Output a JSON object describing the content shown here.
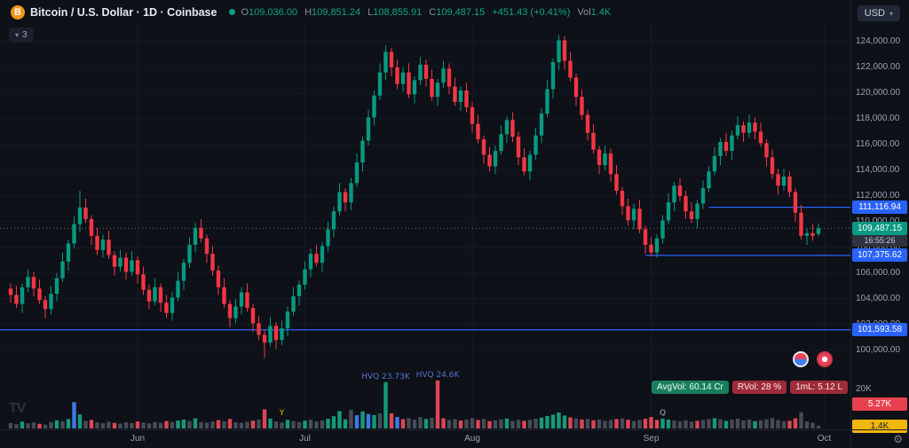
{
  "icons": {
    "bitcoin": "B",
    "caret_down": "▾",
    "gear": "⚙",
    "tv_logo": "TV"
  },
  "header": {
    "title": "Bitcoin / U.S. Dollar · 1D · Coinbase",
    "ohlc": {
      "open_label": "O",
      "open": "109,036.00",
      "high_label": "H",
      "high": "109,851.24",
      "low_label": "L",
      "low": "108,855.91",
      "close_label": "C",
      "close": "109,487.15",
      "change": "+451.43 (+0.41%)",
      "volume_label": "Vol",
      "volume": "1.4K"
    },
    "currency_button": "USD",
    "legend_collapsed_count": "3"
  },
  "price_axis_ticks": [
    "124,000.00",
    "122,000.00",
    "120,000.00",
    "118,000.00",
    "116,000.00",
    "114,000.00",
    "112,000.00",
    "110,000.00",
    "108,000.00",
    "106,000.00",
    "104,000.00",
    "102,000.00",
    "100,000.00"
  ],
  "time_axis": [
    {
      "label": "Jun",
      "i": 22
    },
    {
      "label": "Jul",
      "i": 51
    },
    {
      "label": "Aug",
      "i": 80
    },
    {
      "label": "Sep",
      "i": 111
    },
    {
      "label": "Oct",
      "i": 141
    }
  ],
  "levels": [
    {
      "label": "111,116.94",
      "value": 111116.94,
      "from_i": 121
    },
    {
      "label": "107,375.62",
      "value": 107375.62,
      "from_i": 110
    },
    {
      "label": "101,593.58",
      "value": 101593.58,
      "from_i": -1
    }
  ],
  "last_price": {
    "label": "109,487.15",
    "value": 109487.15,
    "countdown": "16:55:26"
  },
  "volume_pane": {
    "axis_top_label": "20K",
    "axis_top_value": 20,
    "ma_badge": "5.27K",
    "current_badge": "1.4K",
    "stats": [
      {
        "label": "AvgVol: 60.14 Cr",
        "type": "green"
      },
      {
        "label": "RVol: 28 %",
        "type": "red"
      },
      {
        "label": "1mL: 5.12 L",
        "type": "red"
      }
    ],
    "hvq_labels": [
      {
        "text": "HVQ 23.73K",
        "i": 65
      },
      {
        "text": "HVQ 24.6K",
        "i": 74
      }
    ],
    "markers": [
      {
        "text": "Y",
        "i": 47,
        "color": "#f2b70d"
      },
      {
        "text": "Q",
        "i": 113,
        "color": "#aab0bb"
      }
    ]
  },
  "colors": {
    "up": "#089981",
    "down": "#f23645",
    "ray_blue": "#2962ff",
    "badge_yellow": "#f2b70d",
    "grid": "#151a26",
    "dotted_line": "#8a8f9a",
    "vol_gray": "#4a4f5c",
    "vol_red": "#e84a5c",
    "vol_green": "#17a27f",
    "vol_blue": "#3f7ff2",
    "hvq_text": "#5472d3"
  },
  "chart_data": {
    "type": "candlestick",
    "symbol": "Bitcoin / U.S. Dollar",
    "interval": "1D",
    "exchange": "Coinbase",
    "unit": "USD (thousands)",
    "y_range_usd": [
      98300,
      125300
    ],
    "x_months": [
      "Jun",
      "Jul",
      "Aug",
      "Sep",
      "Oct"
    ],
    "candles_ohlc_k": [
      [
        104.8,
        105.2,
        103.7,
        104.3
      ],
      [
        104.3,
        105.0,
        103.3,
        103.6
      ],
      [
        103.6,
        105.2,
        102.9,
        104.9
      ],
      [
        104.9,
        106.3,
        104.5,
        105.7
      ],
      [
        105.7,
        106.1,
        104.2,
        104.8
      ],
      [
        104.8,
        105.5,
        103.6,
        103.9
      ],
      [
        103.9,
        104.2,
        102.5,
        103.2
      ],
      [
        103.2,
        105.0,
        102.8,
        104.4
      ],
      [
        104.4,
        106.0,
        103.8,
        105.6
      ],
      [
        105.6,
        107.6,
        105.3,
        106.9
      ],
      [
        106.9,
        108.6,
        106.2,
        108.3
      ],
      [
        108.3,
        110.4,
        107.9,
        109.8
      ],
      [
        109.8,
        112.4,
        109.2,
        111.1
      ],
      [
        111.1,
        111.8,
        109.9,
        110.2
      ],
      [
        110.2,
        110.5,
        108.2,
        108.9
      ],
      [
        108.9,
        109.5,
        107.4,
        107.8
      ],
      [
        107.8,
        109.0,
        107.2,
        108.6
      ],
      [
        108.6,
        109.3,
        107.1,
        107.4
      ],
      [
        107.4,
        107.7,
        105.8,
        106.5
      ],
      [
        106.5,
        107.8,
        106.1,
        107.2
      ],
      [
        107.2,
        107.6,
        105.5,
        106.1
      ],
      [
        106.1,
        107.7,
        105.8,
        107.0
      ],
      [
        107.0,
        107.3,
        105.2,
        105.9
      ],
      [
        105.9,
        106.5,
        104.3,
        104.7
      ],
      [
        104.7,
        105.1,
        103.2,
        103.8
      ],
      [
        103.8,
        105.6,
        103.5,
        104.9
      ],
      [
        104.9,
        105.2,
        103.0,
        103.7
      ],
      [
        103.7,
        104.3,
        102.5,
        102.9
      ],
      [
        102.9,
        104.5,
        102.3,
        104.1
      ],
      [
        104.1,
        106.1,
        103.8,
        105.4
      ],
      [
        105.4,
        107.1,
        104.7,
        106.8
      ],
      [
        106.8,
        108.8,
        106.4,
        108.2
      ],
      [
        108.2,
        109.9,
        107.6,
        109.5
      ],
      [
        109.5,
        110.2,
        108.4,
        108.7
      ],
      [
        108.7,
        109.0,
        106.8,
        107.5
      ],
      [
        107.5,
        108.1,
        105.8,
        106.2
      ],
      [
        106.2,
        106.6,
        104.3,
        104.9
      ],
      [
        104.9,
        105.6,
        103.3,
        103.6
      ],
      [
        103.6,
        103.9,
        101.8,
        102.5
      ],
      [
        102.5,
        104.0,
        102.1,
        103.4
      ],
      [
        103.4,
        104.9,
        102.8,
        104.5
      ],
      [
        104.5,
        105.2,
        103.0,
        103.3
      ],
      [
        103.3,
        103.6,
        101.4,
        102.1
      ],
      [
        102.1,
        102.7,
        100.8,
        101.2
      ],
      [
        101.2,
        101.6,
        99.4,
        100.6
      ],
      [
        100.6,
        102.6,
        100.3,
        101.9
      ],
      [
        101.9,
        102.2,
        100.1,
        100.8
      ],
      [
        100.8,
        102.3,
        100.4,
        101.7
      ],
      [
        101.7,
        103.4,
        101.1,
        103.0
      ],
      [
        103.0,
        104.9,
        102.7,
        104.2
      ],
      [
        104.2,
        105.4,
        103.5,
        105.1
      ],
      [
        105.1,
        106.9,
        104.7,
        106.3
      ],
      [
        106.3,
        107.9,
        105.7,
        107.5
      ],
      [
        107.5,
        108.2,
        106.5,
        106.8
      ],
      [
        106.8,
        108.4,
        106.1,
        108.1
      ],
      [
        108.1,
        110.0,
        107.7,
        109.4
      ],
      [
        109.4,
        111.2,
        108.8,
        110.8
      ],
      [
        110.8,
        113.0,
        110.5,
        112.3
      ],
      [
        112.3,
        112.6,
        110.8,
        111.5
      ],
      [
        111.5,
        113.4,
        110.9,
        113.0
      ],
      [
        113.0,
        115.3,
        112.7,
        114.6
      ],
      [
        114.6,
        116.6,
        113.9,
        116.3
      ],
      [
        116.3,
        118.7,
        115.9,
        118.1
      ],
      [
        118.1,
        120.2,
        117.5,
        119.8
      ],
      [
        119.8,
        122.3,
        119.5,
        121.6
      ],
      [
        121.6,
        123.7,
        121.0,
        123.2
      ],
      [
        123.2,
        123.5,
        121.3,
        122.0
      ],
      [
        122.0,
        122.6,
        120.3,
        120.7
      ],
      [
        120.7,
        122.0,
        120.1,
        121.6
      ],
      [
        121.6,
        122.3,
        119.6,
        119.9
      ],
      [
        119.9,
        121.3,
        119.2,
        121.0
      ],
      [
        121.0,
        122.8,
        120.6,
        122.2
      ],
      [
        122.2,
        122.6,
        120.5,
        121.1
      ],
      [
        121.1,
        121.8,
        119.4,
        119.7
      ],
      [
        119.7,
        121.1,
        119.0,
        120.8
      ],
      [
        120.8,
        122.5,
        120.4,
        121.9
      ],
      [
        121.9,
        122.3,
        119.9,
        120.5
      ],
      [
        120.5,
        121.2,
        119.0,
        119.3
      ],
      [
        119.3,
        120.5,
        118.6,
        120.2
      ],
      [
        120.2,
        120.8,
        118.5,
        118.9
      ],
      [
        118.9,
        119.3,
        116.9,
        117.6
      ],
      [
        117.6,
        118.3,
        116.1,
        116.4
      ],
      [
        116.4,
        116.7,
        114.5,
        115.2
      ],
      [
        115.2,
        115.8,
        113.9,
        114.3
      ],
      [
        114.3,
        115.9,
        113.7,
        115.5
      ],
      [
        115.5,
        117.5,
        115.2,
        116.8
      ],
      [
        116.8,
        118.2,
        116.1,
        117.9
      ],
      [
        117.9,
        118.5,
        116.2,
        116.6
      ],
      [
        116.6,
        117.0,
        114.4,
        115.0
      ],
      [
        115.0,
        115.7,
        113.6,
        113.9
      ],
      [
        113.9,
        115.5,
        113.2,
        115.2
      ],
      [
        115.2,
        117.3,
        114.8,
        116.7
      ],
      [
        116.7,
        118.8,
        116.1,
        118.4
      ],
      [
        118.4,
        121.0,
        118.1,
        120.3
      ],
      [
        120.3,
        122.7,
        119.6,
        122.4
      ],
      [
        122.4,
        124.5,
        121.8,
        124.1
      ],
      [
        124.1,
        124.4,
        121.8,
        122.5
      ],
      [
        122.5,
        123.2,
        120.9,
        121.2
      ],
      [
        121.2,
        121.5,
        119.0,
        119.7
      ],
      [
        119.7,
        120.3,
        117.9,
        118.3
      ],
      [
        118.3,
        118.7,
        116.3,
        116.9
      ],
      [
        116.9,
        117.6,
        115.3,
        115.6
      ],
      [
        115.6,
        115.9,
        113.7,
        114.4
      ],
      [
        114.4,
        115.9,
        114.0,
        115.3
      ],
      [
        115.3,
        115.7,
        113.1,
        113.7
      ],
      [
        113.7,
        114.4,
        112.1,
        112.4
      ],
      [
        112.4,
        112.7,
        110.5,
        111.2
      ],
      [
        111.2,
        111.8,
        109.7,
        110.1
      ],
      [
        110.1,
        111.4,
        109.4,
        111.0
      ],
      [
        111.0,
        111.7,
        109.1,
        109.4
      ],
      [
        109.4,
        109.7,
        107.5,
        108.2
      ],
      [
        108.2,
        108.8,
        107.3,
        107.6
      ],
      [
        107.6,
        109.0,
        107.2,
        108.7
      ],
      [
        108.7,
        110.5,
        108.3,
        110.1
      ],
      [
        110.1,
        112.2,
        109.8,
        111.5
      ],
      [
        111.5,
        113.1,
        110.8,
        112.8
      ],
      [
        112.8,
        113.4,
        111.6,
        112.0
      ],
      [
        112.0,
        112.4,
        110.2,
        110.8
      ],
      [
        110.8,
        111.5,
        109.9,
        110.2
      ],
      [
        110.2,
        111.7,
        109.5,
        111.4
      ],
      [
        111.4,
        113.2,
        111.0,
        112.6
      ],
      [
        112.6,
        114.3,
        112.3,
        113.9
      ],
      [
        113.9,
        115.8,
        113.6,
        115.1
      ],
      [
        115.1,
        116.5,
        114.4,
        116.2
      ],
      [
        116.2,
        116.9,
        115.1,
        115.5
      ],
      [
        115.5,
        117.1,
        114.8,
        116.7
      ],
      [
        116.7,
        118.2,
        116.4,
        117.5
      ],
      [
        117.5,
        117.8,
        116.2,
        116.9
      ],
      [
        116.9,
        118.3,
        116.5,
        117.7
      ],
      [
        117.7,
        118.1,
        116.4,
        117.0
      ],
      [
        117.0,
        117.7,
        115.8,
        116.1
      ],
      [
        116.1,
        116.4,
        114.3,
        115.0
      ],
      [
        115.0,
        115.6,
        113.3,
        113.7
      ],
      [
        113.7,
        114.1,
        112.1,
        112.8
      ],
      [
        112.8,
        114.1,
        112.4,
        113.5
      ],
      [
        113.5,
        113.9,
        111.9,
        112.3
      ],
      [
        112.3,
        112.6,
        110.0,
        110.7
      ],
      [
        110.7,
        111.3,
        108.6,
        108.9
      ],
      [
        108.9,
        109.5,
        108.2,
        109.1
      ],
      [
        109.1,
        109.8,
        108.5,
        108.9
      ],
      [
        109.036,
        109.851,
        108.856,
        109.487
      ]
    ],
    "volumes_k": [
      2.8,
      2.2,
      3.5,
      2.6,
      3.1,
      2.4,
      2.0,
      3.3,
      4.2,
      3.7,
      4.8,
      13.5,
      7.2,
      3.9,
      4.4,
      3.1,
      2.7,
      3.5,
      2.9,
      2.5,
      3.2,
      2.8,
      3.6,
      3.0,
      2.6,
      3.3,
      2.9,
      3.8,
      3.4,
      4.1,
      4.6,
      3.8,
      5.2,
      3.3,
      3.0,
      3.6,
      4.3,
      3.7,
      4.9,
      3.2,
      2.9,
      3.4,
      4.0,
      4.6,
      9.8,
      5.1,
      3.6,
      3.1,
      4.4,
      3.8,
      3.3,
      4.0,
      4.5,
      3.6,
      4.2,
      5.0,
      6.3,
      8.9,
      4.7,
      9.6,
      6.8,
      8.7,
      7.4,
      6.9,
      7.8,
      23.73,
      7.8,
      5.9,
      4.8,
      5.3,
      4.6,
      5.8,
      4.9,
      5.5,
      24.6,
      5.2,
      4.4,
      4.8,
      4.1,
      4.6,
      5.3,
      4.4,
      4.9,
      3.8,
      4.2,
      4.7,
      5.1,
      3.9,
      4.5,
      4.0,
      4.4,
      5.0,
      5.6,
      6.4,
      7.1,
      8.2,
      6.6,
      5.7,
      5.1,
      4.6,
      4.9,
      4.2,
      4.6,
      3.9,
      4.4,
      4.8,
      5.2,
      4.5,
      3.8,
      4.3,
      5.0,
      5.9,
      4.4,
      5.1,
      4.6,
      4.1,
      3.7,
      4.2,
      3.5,
      3.9,
      4.4,
      4.8,
      5.3,
      4.7,
      3.9,
      4.5,
      5.0,
      4.1,
      4.6,
      3.8,
      4.2,
      4.7,
      5.4,
      4.3,
      3.7,
      4.0,
      5.2,
      8.3,
      3.6,
      2.9,
      1.4
    ],
    "volume_colors": "ddgddrddgdgbgdrdddrdddrddddrdggdgdddrdrdddrdrgddgddgdddggggdbgbgdgrbrdddgdrrddrddrdrddgddrddgggggrdrdrdddrdrddrrrggddddrddgdgddddgdddddrrddddrrddy"
  }
}
